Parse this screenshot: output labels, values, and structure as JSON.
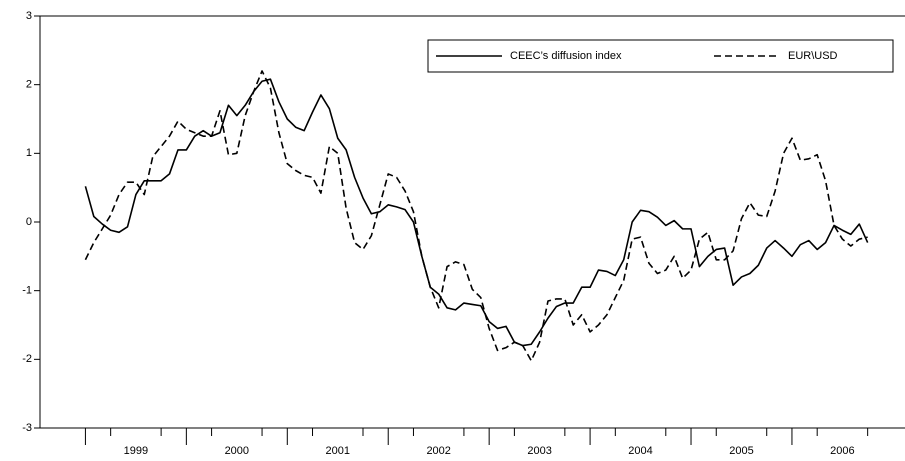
{
  "chart_data": {
    "type": "line",
    "x": [
      1999.0,
      1999.083,
      1999.167,
      1999.25,
      1999.333,
      1999.417,
      1999.5,
      1999.583,
      1999.667,
      1999.75,
      1999.833,
      1999.917,
      2000.0,
      2000.083,
      2000.167,
      2000.25,
      2000.333,
      2000.417,
      2000.5,
      2000.583,
      2000.667,
      2000.75,
      2000.833,
      2000.917,
      2001.0,
      2001.083,
      2001.167,
      2001.25,
      2001.333,
      2001.417,
      2001.5,
      2001.583,
      2001.667,
      2001.75,
      2001.833,
      2001.917,
      2002.0,
      2002.083,
      2002.167,
      2002.25,
      2002.333,
      2002.417,
      2002.5,
      2002.583,
      2002.667,
      2002.75,
      2002.833,
      2002.917,
      2003.0,
      2003.083,
      2003.167,
      2003.25,
      2003.333,
      2003.417,
      2003.5,
      2003.583,
      2003.667,
      2003.75,
      2003.833,
      2003.917,
      2004.0,
      2004.083,
      2004.167,
      2004.25,
      2004.333,
      2004.417,
      2004.5,
      2004.583,
      2004.667,
      2004.75,
      2004.833,
      2004.917,
      2005.0,
      2005.083,
      2005.167,
      2005.25,
      2005.333,
      2005.417,
      2005.5,
      2005.583,
      2005.667,
      2005.75,
      2005.833,
      2005.917,
      2006.0,
      2006.083,
      2006.167,
      2006.25,
      2006.333,
      2006.417,
      2006.5,
      2006.583,
      2006.667,
      2006.75
    ],
    "series": [
      {
        "name": "CEEC’s diffusion index",
        "color": "#000000",
        "dash": "none",
        "values": [
          0.52,
          0.08,
          -0.03,
          -0.12,
          -0.15,
          -0.07,
          0.4,
          0.6,
          0.6,
          0.6,
          0.7,
          1.05,
          1.05,
          1.25,
          1.33,
          1.25,
          1.3,
          1.7,
          1.55,
          1.7,
          1.9,
          2.05,
          2.08,
          1.75,
          1.5,
          1.38,
          1.33,
          1.6,
          1.85,
          1.65,
          1.22,
          1.05,
          0.65,
          0.35,
          0.12,
          0.15,
          0.25,
          0.22,
          0.18,
          0.0,
          -0.5,
          -0.95,
          -1.05,
          -1.25,
          -1.28,
          -1.18,
          -1.2,
          -1.22,
          -1.45,
          -1.55,
          -1.52,
          -1.75,
          -1.8,
          -1.78,
          -1.6,
          -1.4,
          -1.23,
          -1.18,
          -1.18,
          -0.95,
          -0.95,
          -0.7,
          -0.72,
          -0.78,
          -0.55,
          0.0,
          0.17,
          0.15,
          0.07,
          -0.05,
          0.02,
          -0.1,
          -0.1,
          -0.65,
          -0.5,
          -0.4,
          -0.38,
          -0.92,
          -0.8,
          -0.75,
          -0.63,
          -0.38,
          -0.27,
          -0.38,
          -0.5,
          -0.33,
          -0.27,
          -0.4,
          -0.3,
          -0.05,
          -0.12,
          -0.18,
          -0.03,
          -0.3
        ]
      },
      {
        "name": "EUR\\USD",
        "color": "#000000",
        "dash": "7 4",
        "values": [
          -0.55,
          -0.3,
          -0.1,
          0.1,
          0.4,
          0.58,
          0.58,
          0.4,
          0.95,
          1.1,
          1.25,
          1.47,
          1.35,
          1.3,
          1.25,
          1.25,
          1.62,
          0.98,
          1.0,
          1.55,
          1.9,
          2.2,
          1.95,
          1.3,
          0.85,
          0.75,
          0.68,
          0.65,
          0.42,
          1.1,
          1.0,
          0.2,
          -0.3,
          -0.4,
          -0.2,
          0.25,
          0.7,
          0.65,
          0.45,
          0.15,
          -0.5,
          -0.95,
          -1.25,
          -0.65,
          -0.58,
          -0.62,
          -0.98,
          -1.1,
          -1.55,
          -1.87,
          -1.83,
          -1.75,
          -1.8,
          -2.02,
          -1.75,
          -1.15,
          -1.12,
          -1.12,
          -1.5,
          -1.35,
          -1.6,
          -1.5,
          -1.35,
          -1.1,
          -0.85,
          -0.25,
          -0.22,
          -0.6,
          -0.75,
          -0.7,
          -0.5,
          -0.82,
          -0.7,
          -0.25,
          -0.15,
          -0.55,
          -0.55,
          -0.42,
          0.05,
          0.28,
          0.1,
          0.08,
          0.45,
          1.0,
          1.22,
          0.9,
          0.92,
          0.98,
          0.6,
          -0.05,
          -0.25,
          -0.35,
          -0.25,
          -0.22
        ]
      }
    ],
    "xlim": [
      1998.55,
      2007.12
    ],
    "xticks": [
      {
        "value": 1999.5,
        "label": "1999"
      },
      {
        "value": 2000.5,
        "label": "2000"
      },
      {
        "value": 2001.5,
        "label": "2001"
      },
      {
        "value": 2002.5,
        "label": "2002"
      },
      {
        "value": 2003.5,
        "label": "2003"
      },
      {
        "value": 2004.5,
        "label": "2004"
      },
      {
        "value": 2005.5,
        "label": "2005"
      },
      {
        "value": 2006.5,
        "label": "2006"
      }
    ],
    "xtick_marks": [
      1999,
      2000,
      2001,
      2002,
      2003,
      2004,
      2005,
      2006
    ],
    "xminor_ticks": [
      1999.25,
      1999.75,
      2000.25,
      2000.75,
      2001.25,
      2001.75,
      2002.25,
      2002.75,
      2003.25,
      2003.75,
      2004.25,
      2004.75,
      2005.25,
      2005.75,
      2006.25,
      2006.75
    ],
    "ylim": [
      -3,
      3
    ],
    "yticks": [
      -3,
      -2,
      -1,
      0,
      1,
      2,
      3
    ],
    "grid": false,
    "legend": "top-right"
  }
}
